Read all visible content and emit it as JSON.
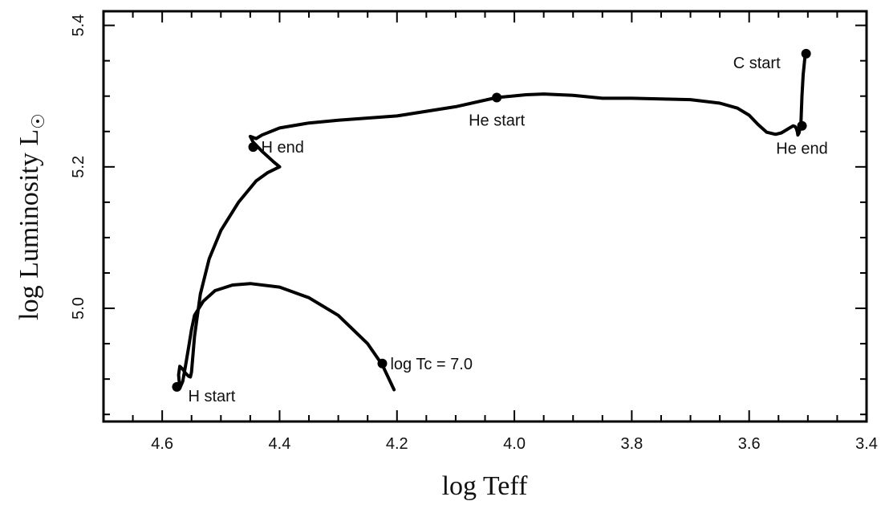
{
  "chart_data": {
    "type": "line",
    "title": "",
    "xlabel": "log Teff",
    "ylabel": "log Luminosity L",
    "ylabel_symbol": "☉",
    "xlim": [
      4.7,
      3.4
    ],
    "ylim": [
      4.84,
      5.42
    ],
    "x_inverted": true,
    "grid": false,
    "legend": "none",
    "xticks": [
      4.6,
      4.4,
      4.2,
      4.0,
      3.8,
      3.6,
      3.4
    ],
    "xtick_labels": [
      "4.6",
      "4.4",
      "4.2",
      "4.0",
      "3.8",
      "3.6",
      "3.4"
    ],
    "yticks": [
      5.0,
      5.2,
      5.4
    ],
    "ytick_labels": [
      "5.0",
      "5.2",
      "5.4"
    ],
    "series": [
      {
        "name": "",
        "color": "#000000",
        "x": [
          4.205,
          4.225,
          4.25,
          4.3,
          4.35,
          4.4,
          4.45,
          4.48,
          4.51,
          4.53,
          4.545,
          4.55,
          4.555,
          4.56,
          4.565,
          4.57,
          4.572,
          4.57,
          4.565,
          4.56,
          4.555,
          4.552,
          4.55,
          4.545,
          4.535,
          4.52,
          4.5,
          4.47,
          4.44,
          4.42,
          4.405,
          4.4,
          4.41,
          4.43,
          4.445,
          4.45,
          4.44,
          4.43,
          4.4,
          4.35,
          4.3,
          4.2,
          4.1,
          4.03,
          3.98,
          3.95,
          3.9,
          3.85,
          3.8,
          3.75,
          3.7,
          3.65,
          3.62,
          3.6,
          3.585,
          3.57,
          3.555,
          3.545,
          3.535,
          3.525,
          3.522,
          3.52,
          3.518,
          3.517,
          3.515,
          3.513,
          3.512,
          3.51,
          3.508,
          3.505,
          3.503
        ],
        "y": [
          4.885,
          4.92,
          4.95,
          4.99,
          5.015,
          5.03,
          5.035,
          5.033,
          5.025,
          5.01,
          4.99,
          4.97,
          4.945,
          4.92,
          4.897,
          4.887,
          4.906,
          4.918,
          4.914,
          4.908,
          4.904,
          4.903,
          4.91,
          4.96,
          5.02,
          5.07,
          5.11,
          5.15,
          5.18,
          5.192,
          5.198,
          5.2,
          5.207,
          5.222,
          5.235,
          5.243,
          5.24,
          5.245,
          5.255,
          5.262,
          5.266,
          5.272,
          5.285,
          5.298,
          5.302,
          5.303,
          5.301,
          5.297,
          5.297,
          5.296,
          5.295,
          5.29,
          5.283,
          5.273,
          5.26,
          5.249,
          5.246,
          5.248,
          5.253,
          5.258,
          5.257,
          5.255,
          5.25,
          5.245,
          5.248,
          5.256,
          5.258,
          5.3,
          5.33,
          5.355,
          5.36
        ]
      }
    ],
    "annotations": [
      {
        "label": "H start",
        "x": 4.575,
        "y": 4.889,
        "position": "below-right"
      },
      {
        "label": "H end",
        "x": 4.445,
        "y": 5.228,
        "position": "right"
      },
      {
        "label": "He start",
        "x": 4.03,
        "y": 5.298,
        "position": "below"
      },
      {
        "label": "He end",
        "x": 3.51,
        "y": 5.258,
        "position": "below"
      },
      {
        "label": "C start",
        "x": 3.503,
        "y": 5.36,
        "position": "left"
      },
      {
        "label": "log Tc = 7.0",
        "x": 4.225,
        "y": 4.922,
        "position": "right"
      }
    ]
  }
}
